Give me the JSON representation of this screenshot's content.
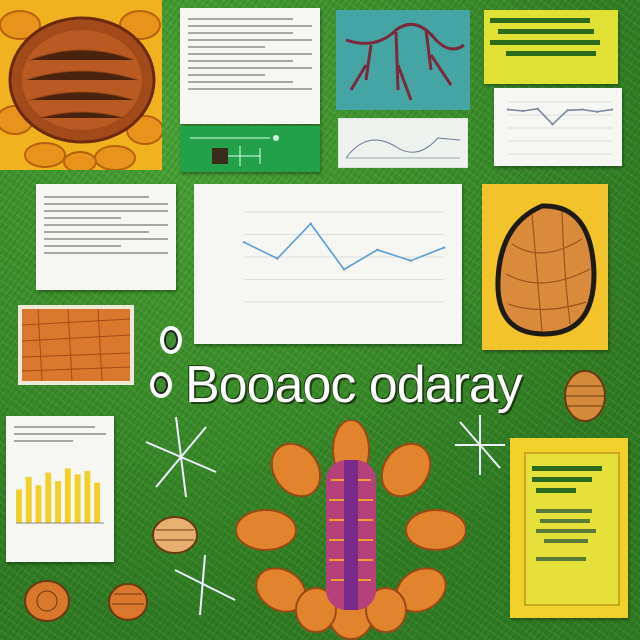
{
  "poster": {
    "title": "Booaoc odaray"
  },
  "colors": {
    "background": "#3f8f2c",
    "accent_yellow": "#f2d02a",
    "orange": "#d9772c",
    "line_blue": "#5a9cd6"
  },
  "icons": [
    "sunflower-illustration",
    "leaf-illustration",
    "seed-illustration",
    "flower-illustration",
    "sparkle-icon"
  ],
  "chart_data": [
    {
      "type": "line",
      "series": [
        {
          "values": [
            55,
            40,
            72,
            30,
            48,
            38,
            50
          ]
        }
      ]
    },
    {
      "type": "line",
      "series": [
        {
          "values": [
            60,
            58,
            61,
            40,
            59,
            60,
            57,
            60
          ]
        }
      ]
    },
    {
      "type": "bar",
      "series": [
        {
          "values": [
            40,
            55,
            45,
            60,
            50,
            65,
            58,
            62,
            48
          ]
        }
      ]
    }
  ]
}
